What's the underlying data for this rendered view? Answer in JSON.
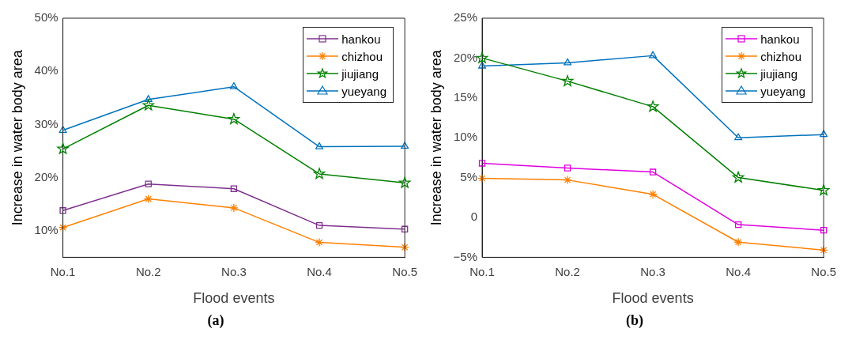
{
  "chart_data": [
    {
      "type": "line",
      "xlabel": "Flood events",
      "ylabel": "Increase in water body area",
      "categories": [
        "No.1",
        "No.2",
        "No.3",
        "No.4",
        "No.5"
      ],
      "series": [
        {
          "name": "hankou",
          "color": "#7e2f8e",
          "marker": "square",
          "values": [
            13.8,
            18.8,
            17.9,
            11.0,
            10.3
          ]
        },
        {
          "name": "chizhou",
          "color": "#ff8000",
          "marker": "cross",
          "values": [
            10.6,
            16.0,
            14.3,
            7.8,
            6.9
          ]
        },
        {
          "name": "jiujiang",
          "color": "#008000",
          "marker": "star",
          "values": [
            25.4,
            33.6,
            31.0,
            20.7,
            19.0
          ]
        },
        {
          "name": "yueyang",
          "color": "#0072bd",
          "marker": "triangle",
          "values": [
            28.9,
            34.7,
            37.1,
            25.8,
            25.9
          ]
        }
      ],
      "ylim": [
        5,
        50
      ],
      "yticks": [
        {
          "value": 10,
          "label": "10%"
        },
        {
          "value": 20,
          "label": "20%"
        },
        {
          "value": 30,
          "label": "30%"
        },
        {
          "value": 40,
          "label": "40%"
        },
        {
          "value": 50,
          "label": "50%"
        }
      ],
      "grid": false,
      "legend": "top right",
      "annotations": [
        "(a)"
      ]
    },
    {
      "type": "line",
      "xlabel": "Flood events",
      "ylabel": "Increase in water body area",
      "categories": [
        "No.1",
        "No.2",
        "No.3",
        "No.4",
        "No.5"
      ],
      "series": [
        {
          "name": "hankou",
          "color": "#e000e0",
          "marker": "square",
          "values": [
            6.8,
            6.2,
            5.7,
            -0.9,
            -1.6
          ]
        },
        {
          "name": "chizhou",
          "color": "#ff8000",
          "marker": "cross",
          "values": [
            4.9,
            4.7,
            2.9,
            -3.1,
            -4.1
          ]
        },
        {
          "name": "jiujiang",
          "color": "#008000",
          "marker": "star",
          "values": [
            20.0,
            17.1,
            13.9,
            5.0,
            3.4
          ]
        },
        {
          "name": "yueyang",
          "color": "#0072bd",
          "marker": "triangle",
          "values": [
            19.0,
            19.4,
            20.3,
            10.0,
            10.4
          ]
        }
      ],
      "ylim": [
        -5,
        25
      ],
      "yticks": [
        {
          "value": -5,
          "label": "−5%"
        },
        0,
        {
          "value": 5,
          "label": "5%"
        },
        {
          "value": 10,
          "label": "10%"
        },
        {
          "value": 15,
          "label": "15%"
        },
        {
          "value": 20,
          "label": "20%"
        },
        {
          "value": 25,
          "label": "25%"
        }
      ],
      "grid": false,
      "legend": "top right",
      "annotations": [
        "(b)"
      ]
    }
  ]
}
